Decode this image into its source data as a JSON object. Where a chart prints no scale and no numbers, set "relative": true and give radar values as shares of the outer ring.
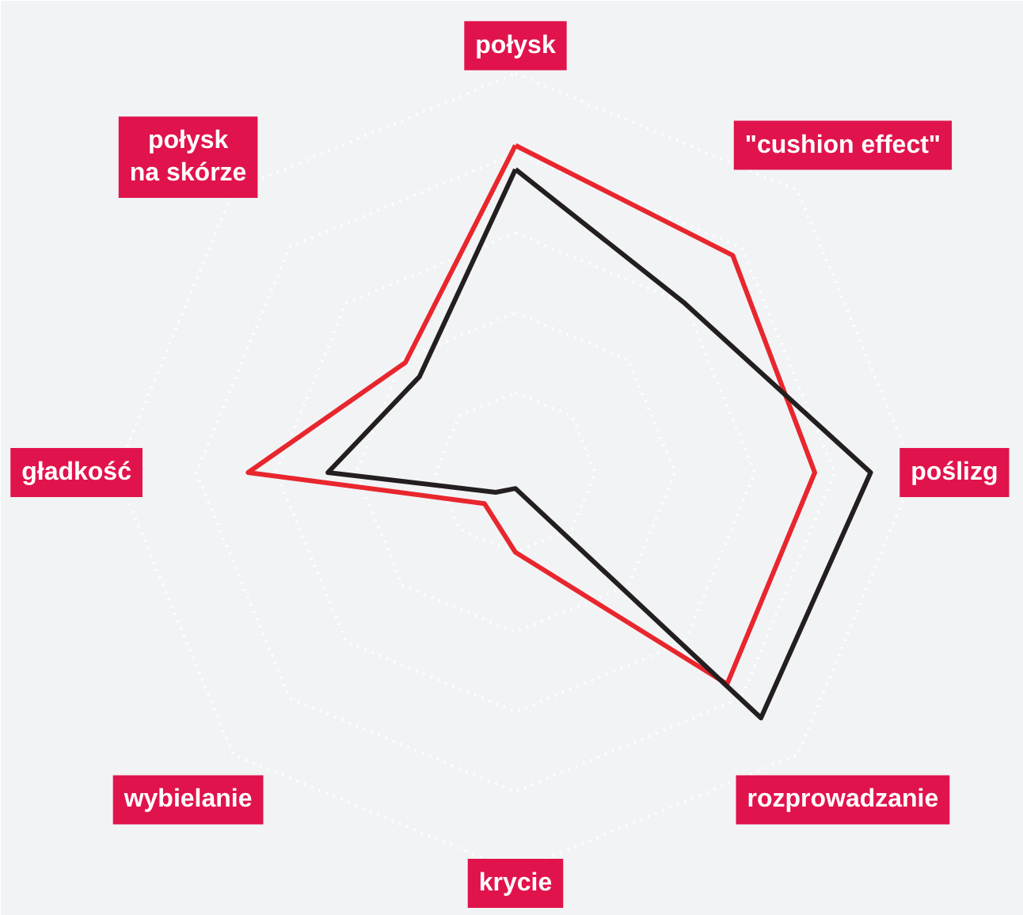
{
  "chart_data": {
    "type": "radar",
    "relative": true,
    "grid": true,
    "line_style": "solid",
    "marker": "none",
    "categories": [
      "połysk",
      "\"cushion effect\"",
      "poślizg",
      "rozprowadzanie",
      "krycie",
      "wybielanie",
      "gładkość",
      "połysk\nna skórze"
    ],
    "series": [
      {
        "color": "#e8262d",
        "values": [
          0.82,
          0.77,
          0.75,
          0.75,
          0.2,
          0.11,
          0.67,
          0.39
        ]
      },
      {
        "color": "#231f20",
        "values": [
          0.76,
          0.6,
          0.89,
          0.87,
          0.04,
          0.07,
          0.47,
          0.34
        ]
      }
    ]
  }
}
